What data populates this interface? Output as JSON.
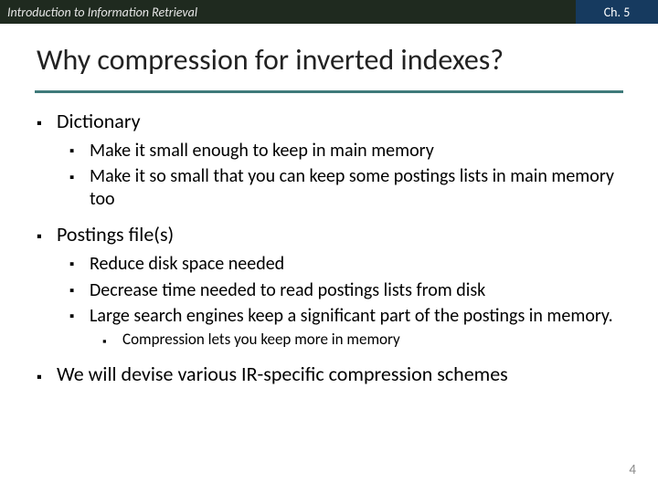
{
  "header": {
    "left": "Introduction to Information Retrieval",
    "right": "Ch. 5"
  },
  "title": "Why compression for inverted indexes?",
  "bullets": [
    {
      "text": "Dictionary",
      "children": [
        {
          "text": "Make it small enough to keep in main memory"
        },
        {
          "text": "Make it so small that you can keep some postings lists in main memory too"
        }
      ]
    },
    {
      "text": "Postings file(s)",
      "children": [
        {
          "text": "Reduce disk space needed"
        },
        {
          "text": "Decrease time needed to read postings lists from disk"
        },
        {
          "text": "Large search engines keep a significant part of the postings in memory.",
          "children": [
            {
              "text": "Compression lets you keep more in memory"
            }
          ]
        }
      ]
    },
    {
      "text": "We will devise various IR-specific compression schemes"
    }
  ],
  "page_number": "4",
  "colors": {
    "header_bg": "#1f2a1f",
    "chapter_bg": "#163a5f",
    "rule": "#3f7a7a",
    "page_num": "#8a8a8a"
  },
  "fontsizes": {
    "title": 32,
    "lvl1": 22,
    "lvl2": 20,
    "lvl3": 17
  }
}
